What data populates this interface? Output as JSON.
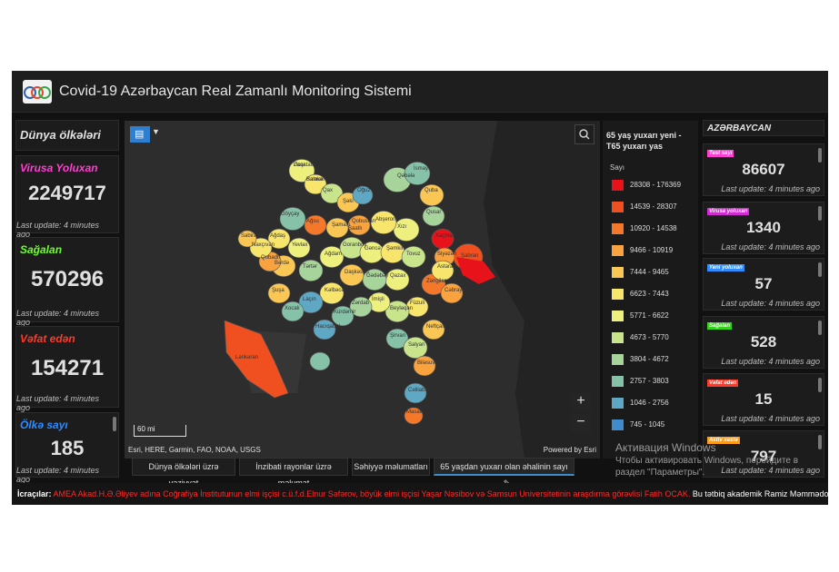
{
  "header": {
    "title": "Covid-19 Azərbaycan Real Zamanlı Monitoring Sistemi",
    "logo_text": "GEO"
  },
  "left": {
    "title": "Dünya ölkələri",
    "cards": [
      {
        "label": "Virusa Yoluxan",
        "value": "2249717",
        "update": "Last update: 4 minutes ago",
        "color": "#ff3fd0"
      },
      {
        "label": "Sağalan",
        "value": "570296",
        "update": "Last update: 4 minutes ago",
        "color": "#6cff2c"
      },
      {
        "label": "Vəfat edən",
        "value": "154271",
        "update": "Last update: 4 minutes ago",
        "color": "#ff3a2a"
      },
      {
        "label": "Ölkə sayı",
        "value": "185",
        "update": "Last update: 4 minutes ago",
        "color": "#2f8cff"
      }
    ]
  },
  "map": {
    "scale": "60 mi",
    "attribution": "Esri, HERE, Garmin, FAO, NOAA, USGS",
    "powered": "Powered by Esri"
  },
  "legend": {
    "title": "65 yaş yuxarı yeni - T65 yuxarı yas",
    "subtitle": "Sayı",
    "items": [
      {
        "range": "28308 - 176369",
        "color": "#e8121a"
      },
      {
        "range": "14539 - 28307",
        "color": "#f0501f"
      },
      {
        "range": "10920 - 14538",
        "color": "#f5782a"
      },
      {
        "range": "9466 - 10919",
        "color": "#f9a23e"
      },
      {
        "range": "7444 - 9465",
        "color": "#fac654"
      },
      {
        "range": "6623 - 7443",
        "color": "#f8e56c"
      },
      {
        "range": "5771 - 6622",
        "color": "#eef07e"
      },
      {
        "range": "4673 - 5770",
        "color": "#c9e58c"
      },
      {
        "range": "3804 - 4672",
        "color": "#a6d49a"
      },
      {
        "range": "2757 - 3803",
        "color": "#85c2a8"
      },
      {
        "range": "1046 - 2756",
        "color": "#5fa8c4"
      },
      {
        "range": "745 - 1045",
        "color": "#3f8bcb"
      }
    ]
  },
  "right": {
    "title": "AZƏRBAYCAN",
    "cards": [
      {
        "label": "Test sayı",
        "value": "86607",
        "update": "Last update: 4 minutes ago",
        "color": "#ff3fd0"
      },
      {
        "label": "Virusa yoluxan",
        "value": "1340",
        "update": "Last update: 4 minutes ago",
        "color": "#d02ad0"
      },
      {
        "label": "Yeni yoluxan",
        "value": "57",
        "update": "Last update: 4 minutes ago",
        "color": "#2f8cff"
      },
      {
        "label": "Sağalan",
        "value": "528",
        "update": "Last update: 4 minutes ago",
        "color": "#35d21c"
      },
      {
        "label": "Vəfat edən",
        "value": "15",
        "update": "Last update: 4 minutes ago",
        "color": "#ff3a2a"
      },
      {
        "label": "Aktiv xəstə",
        "value": "797",
        "update": "Last update: 4 minutes ago",
        "color": "#ff9c1a"
      }
    ]
  },
  "tabs": [
    "Dünya ölkələri üzrə vəziyyət",
    "İnzibati rayonlar üzrə məlumat",
    "Səhiyyə məlumatları",
    "65 yaşdan yuxarı olan əhalinin sayı"
  ],
  "footer": {
    "label": "İcraçılar:",
    "authors": "AMEA Akad.H.Ə.Əliyev adına Coğrafiya İnstitutunun elmi işçisi c.ü.f.d.Elnur Səfərov, böyük elmi işçisi Yaşar Nəsibov və Samsun Universitetinin araşdırma görəvlisi Fatih OCAK.",
    "note": "Bu tətbiq akademik Ramiz Məmmədovun rəhbərliyi"
  },
  "watermark": {
    "line1": "Активация Windows",
    "line2": "Чтобы активировать Windows, перейдите в",
    "line3": "раздел \"Параметры\"."
  },
  "map_labels": [
    "Zaqatala",
    "Balakən",
    "Qax",
    "Şəki",
    "Oğuz",
    "Qəbələ",
    "İsmayıllı",
    "Quba",
    "Qusar",
    "Xaçmaz",
    "Şabran",
    "Siyəzən",
    "Xızı",
    "Abşeron",
    "Qobustan",
    "Şamaxı",
    "Ağsu",
    "Göyçay",
    "Ağdaş",
    "Yevlax",
    "Bərdə",
    "Tərtər",
    "Ağdam",
    "Goranboy",
    "Gəncə",
    "Şəmkir",
    "Tovuz",
    "Qazax",
    "Gədəbəy",
    "Daşkəsən",
    "Kəlbəcər",
    "Laçın",
    "Xocalı",
    "Şuşa",
    "Qubadlı",
    "Zəngilan",
    "Cəbrayıl",
    "Füzuli",
    "Beyləqan",
    "İmişli",
    "Zərdab",
    "Kürdəmir",
    "Hacıqabul",
    "Şirvan",
    "Salyan",
    "Neftçala",
    "Biləsuvar",
    "Cəlilabad",
    "Masallı",
    "Lənkəran",
    "Astara",
    "Naxçıvan",
    "Sabirabad",
    "Saatlı",
    "Ucar",
    "Samux"
  ]
}
